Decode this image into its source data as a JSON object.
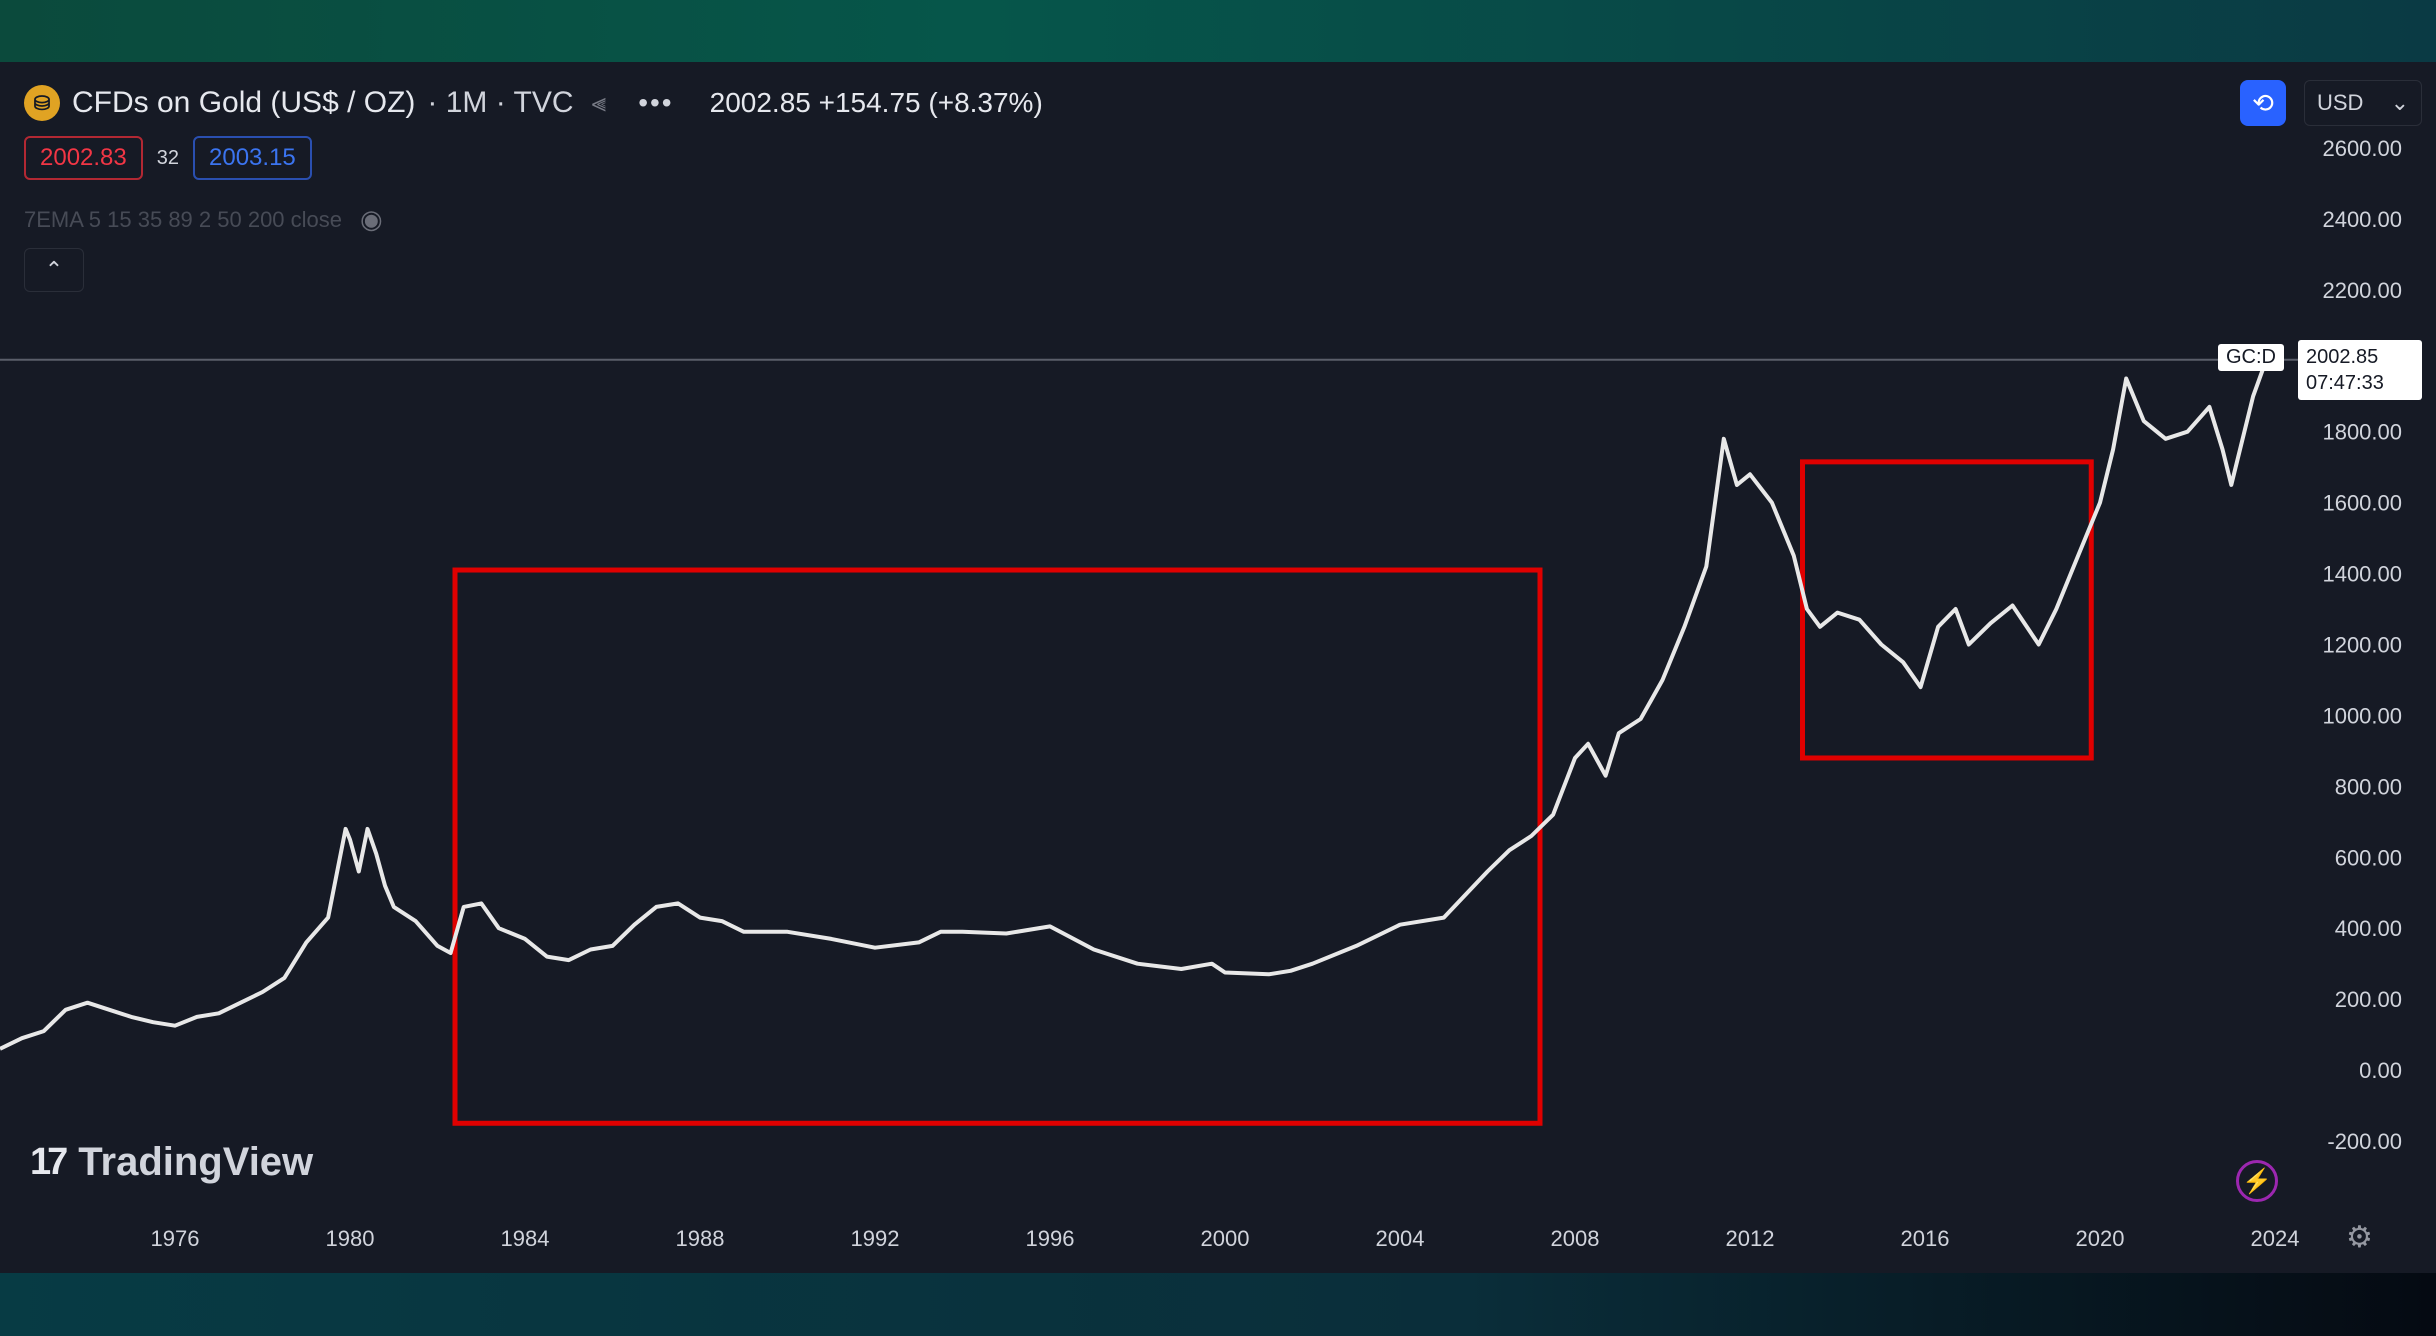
{
  "header": {
    "symbol_icon": "gold-coin-icon",
    "title": "CFDs on Gold (US$ / OZ)",
    "interval": "· 1M · TVC",
    "price_line": "2002.85 +154.75 (+8.37%)"
  },
  "quote": {
    "sell": "2002.83",
    "spread": "32",
    "buy": "2003.15"
  },
  "indicator": {
    "label": "7EMA 5 15 35 89 2 50 200 close",
    "eye_icon": "eye-icon"
  },
  "controls": {
    "collapse_icon": "chevron-up-icon",
    "currency": "USD"
  },
  "brand": {
    "name": "TradingView"
  },
  "last_price": {
    "symbol": "GC:D",
    "value": "2002.85",
    "countdown": "07:47:33"
  },
  "colors": {
    "background": "#161a25",
    "line": "#e8e8e8",
    "highlight_box": "#e00000",
    "grid_line": "#5a5e6a"
  },
  "chart_data": {
    "type": "line",
    "title": "CFDs on Gold (US$ / OZ)",
    "xlabel": "",
    "ylabel": "",
    "ylim": [
      -200,
      2600
    ],
    "y_ticks": [
      "2600.00",
      "2400.00",
      "2200.00",
      "1800.00",
      "1600.00",
      "1400.00",
      "1200.00",
      "1000.00",
      "800.00",
      "600.00",
      "400.00",
      "200.00",
      "0.00",
      "-200.00"
    ],
    "x_ticks": [
      "1976",
      "1980",
      "1984",
      "1988",
      "1992",
      "1996",
      "2000",
      "2004",
      "2008",
      "2012",
      "2016",
      "2020",
      "2024"
    ],
    "grid": false,
    "series": [
      {
        "x": [
          1972.0,
          1972.5,
          1973.0,
          1973.5,
          1974.0,
          1974.5,
          1975.0,
          1975.5,
          1976.0,
          1976.5,
          1977.0,
          1977.5,
          1978.0,
          1978.5,
          1979.0,
          1979.5,
          1979.9,
          1980.0,
          1980.2,
          1980.4,
          1980.6,
          1980.8,
          1981.0,
          1981.5,
          1982.0,
          1982.3,
          1982.6,
          1983.0,
          1983.4,
          1984.0,
          1984.5,
          1985.0,
          1985.5,
          1986.0,
          1986.5,
          1987.0,
          1987.5,
          1988.0,
          1988.5,
          1989.0,
          1990.0,
          1991.0,
          1992.0,
          1993.0,
          1993.5,
          1994.0,
          1995.0,
          1996.0,
          1997.0,
          1998.0,
          1999.0,
          1999.7,
          2000.0,
          2001.0,
          2001.5,
          2002.0,
          2003.0,
          2004.0,
          2005.0,
          2006.0,
          2006.5,
          2007.0,
          2007.5,
          2008.0,
          2008.3,
          2008.7,
          2009.0,
          2009.5,
          2010.0,
          2010.5,
          2011.0,
          2011.4,
          2011.7,
          2012.0,
          2012.5,
          2013.0,
          2013.3,
          2013.6,
          2014.0,
          2014.5,
          2015.0,
          2015.5,
          2015.9,
          2016.3,
          2016.7,
          2017.0,
          2017.5,
          2018.0,
          2018.6,
          2019.0,
          2019.5,
          2020.0,
          2020.3,
          2020.6,
          2021.0,
          2021.5,
          2022.0,
          2022.5,
          2022.8,
          2023.0,
          2023.5,
          2023.8
        ],
        "y": [
          60,
          90,
          110,
          170,
          190,
          170,
          150,
          135,
          125,
          150,
          160,
          190,
          220,
          260,
          360,
          430,
          680,
          650,
          560,
          680,
          610,
          520,
          460,
          420,
          350,
          330,
          460,
          470,
          400,
          370,
          320,
          310,
          340,
          350,
          410,
          460,
          470,
          430,
          420,
          390,
          390,
          370,
          345,
          360,
          390,
          390,
          385,
          405,
          340,
          300,
          285,
          300,
          275,
          270,
          280,
          300,
          350,
          410,
          430,
          560,
          620,
          660,
          720,
          880,
          920,
          830,
          950,
          990,
          1100,
          1250,
          1420,
          1780,
          1650,
          1680,
          1600,
          1450,
          1300,
          1250,
          1290,
          1270,
          1200,
          1150,
          1080,
          1250,
          1300,
          1200,
          1260,
          1310,
          1200,
          1300,
          1450,
          1600,
          1750,
          1950,
          1830,
          1780,
          1800,
          1870,
          1750,
          1650,
          1900,
          2002
        ]
      }
    ],
    "highlight_boxes": [
      {
        "x0": 1982.4,
        "x1": 2007.2,
        "y0": -150,
        "y1": 1410
      },
      {
        "x0": 2013.2,
        "x1": 2019.8,
        "y0": 880,
        "y1": 1715
      }
    ],
    "last_value": 2002.85
  }
}
